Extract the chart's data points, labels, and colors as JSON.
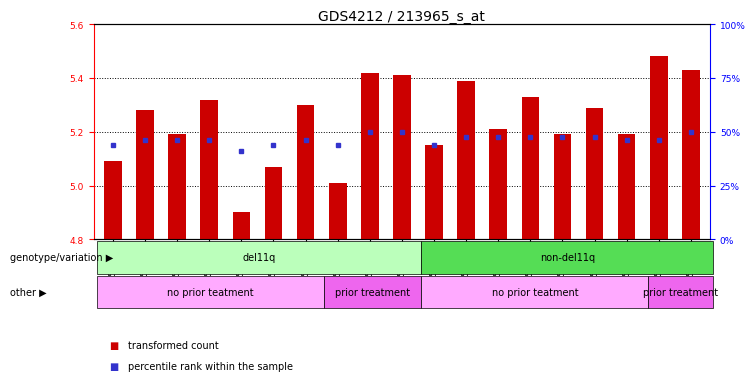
{
  "title": "GDS4212 / 213965_s_at",
  "samples": [
    "GSM652229",
    "GSM652230",
    "GSM652232",
    "GSM652233",
    "GSM652234",
    "GSM652235",
    "GSM652236",
    "GSM652231",
    "GSM652237",
    "GSM652238",
    "GSM652241",
    "GSM652242",
    "GSM652243",
    "GSM652244",
    "GSM652245",
    "GSM652247",
    "GSM652239",
    "GSM652240",
    "GSM652246"
  ],
  "red_values": [
    5.09,
    5.28,
    5.19,
    5.32,
    4.9,
    5.07,
    5.3,
    5.01,
    5.42,
    5.41,
    5.15,
    5.39,
    5.21,
    5.33,
    5.19,
    5.29,
    5.19,
    5.48,
    5.43
  ],
  "blue_values": [
    5.15,
    5.17,
    5.17,
    5.17,
    5.13,
    5.15,
    5.17,
    5.15,
    5.2,
    5.2,
    5.15,
    5.18,
    5.18,
    5.18,
    5.18,
    5.18,
    5.17,
    5.17,
    5.2
  ],
  "ylim_left": [
    4.8,
    5.6
  ],
  "ylim_right": [
    0,
    100
  ],
  "yticks_left": [
    4.8,
    5.0,
    5.2,
    5.4,
    5.6
  ],
  "yticks_right": [
    0,
    25,
    50,
    75,
    100
  ],
  "ytick_labels_right": [
    "0%",
    "25%",
    "50%",
    "75%",
    "100%"
  ],
  "bar_color": "#cc0000",
  "blue_color": "#3333cc",
  "base_value": 4.8,
  "annotation_rows": [
    {
      "label": "genotype/variation",
      "groups": [
        {
          "text": "del11q",
          "start": 0,
          "end": 10,
          "color": "#bbffbb"
        },
        {
          "text": "non-del11q",
          "start": 10,
          "end": 19,
          "color": "#55dd55"
        }
      ]
    },
    {
      "label": "other",
      "groups": [
        {
          "text": "no prior teatment",
          "start": 0,
          "end": 7,
          "color": "#ffaaff"
        },
        {
          "text": "prior treatment",
          "start": 7,
          "end": 10,
          "color": "#ee66ee"
        },
        {
          "text": "no prior teatment",
          "start": 10,
          "end": 17,
          "color": "#ffaaff"
        },
        {
          "text": "prior treatment",
          "start": 17,
          "end": 19,
          "color": "#ee66ee"
        }
      ]
    }
  ],
  "legend": [
    {
      "color": "#cc0000",
      "label": "transformed count"
    },
    {
      "color": "#3333cc",
      "label": "percentile rank within the sample"
    }
  ],
  "title_fontsize": 10,
  "tick_fontsize": 6.5,
  "annot_fontsize": 7,
  "legend_fontsize": 7,
  "label_fontsize": 7
}
